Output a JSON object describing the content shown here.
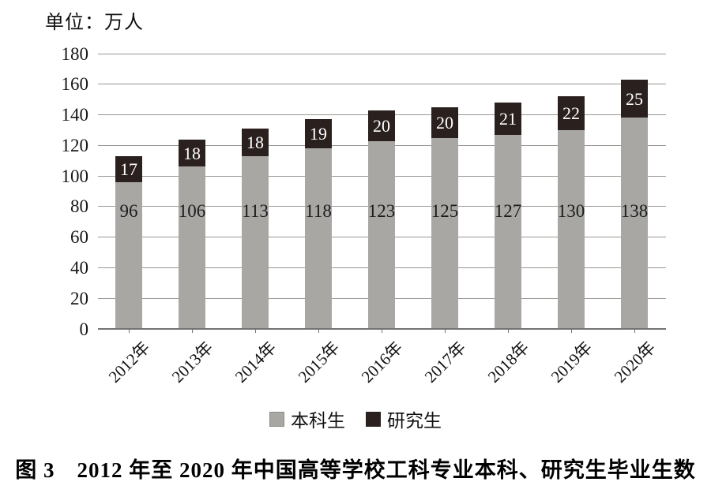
{
  "unit_label": "单位：万人",
  "caption": "图 3　2012 年至 2020 年中国高等学校工科专业本科、研究生毕业生数",
  "legend": {
    "items": [
      {
        "label": "本科生",
        "color": "#a9a7a4",
        "border": "#8d8b88"
      },
      {
        "label": "研究生",
        "color": "#2a211e",
        "border": "#2a211e"
      }
    ]
  },
  "chart_data": {
    "type": "bar",
    "stacked": true,
    "unit_label": "单位：万人",
    "categories": [
      "2012年",
      "2013年",
      "2014年",
      "2015年",
      "2016年",
      "2017年",
      "2018年",
      "2019年",
      "2020年"
    ],
    "series": [
      {
        "name": "本科生",
        "values": [
          96,
          106,
          113,
          118,
          123,
          125,
          127,
          130,
          138
        ],
        "color": "#a9a7a4",
        "label_color": "#1c1c1c"
      },
      {
        "name": "研究生",
        "values": [
          17,
          18,
          18,
          19,
          20,
          20,
          21,
          22,
          25
        ],
        "color": "#2a211e",
        "label_color": "#ffffff"
      }
    ],
    "ylim": [
      0,
      180
    ],
    "yticks": [
      0,
      20,
      40,
      60,
      80,
      100,
      120,
      140,
      160,
      180
    ],
    "grid": true,
    "gridline_color": "#999793",
    "legend_position": "bottom",
    "xlabel": "",
    "ylabel": ""
  }
}
